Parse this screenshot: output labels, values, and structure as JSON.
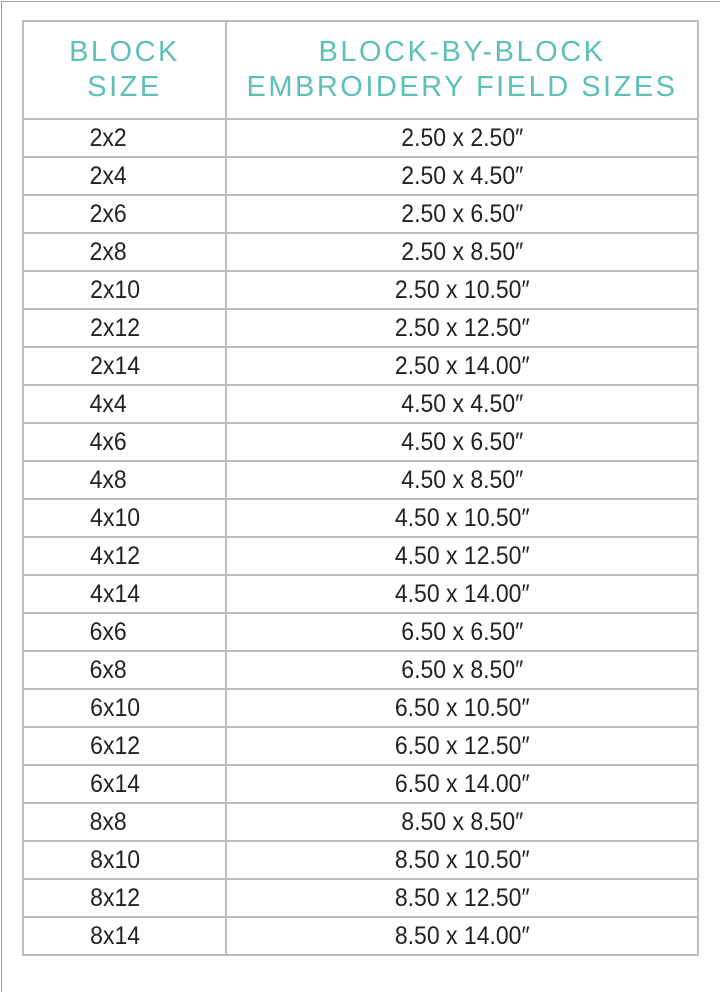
{
  "header": {
    "col1": [
      "BLOCK",
      "SIZE"
    ],
    "col2": [
      "BLOCK-BY-BLOCK",
      "EMBROIDERY FIELD SIZES"
    ]
  },
  "accent_color": "#5cc0b6",
  "rows": [
    {
      "block": "2x2",
      "field": "2.50 x 2.50″"
    },
    {
      "block": "2x4",
      "field": "2.50 x 4.50″"
    },
    {
      "block": "2x6",
      "field": "2.50 x 6.50″"
    },
    {
      "block": "2x8",
      "field": "2.50 x 8.50″"
    },
    {
      "block": "2x10",
      "field": "2.50 x 10.50″"
    },
    {
      "block": "2x12",
      "field": "2.50 x 12.50″"
    },
    {
      "block": "2x14",
      "field": "2.50 x 14.00″"
    },
    {
      "block": "4x4",
      "field": "4.50 x 4.50″"
    },
    {
      "block": "4x6",
      "field": "4.50 x 6.50″"
    },
    {
      "block": "4x8",
      "field": "4.50 x 8.50″"
    },
    {
      "block": "4x10",
      "field": "4.50 x 10.50″"
    },
    {
      "block": "4x12",
      "field": "4.50 x 12.50″"
    },
    {
      "block": "4x14",
      "field": "4.50 x 14.00″"
    },
    {
      "block": "6x6",
      "field": "6.50 x 6.50″"
    },
    {
      "block": "6x8",
      "field": "6.50 x 8.50″"
    },
    {
      "block": "6x10",
      "field": "6.50 x 10.50″"
    },
    {
      "block": "6x12",
      "field": "6.50 x 12.50″"
    },
    {
      "block": "6x14",
      "field": "6.50 x 14.00″"
    },
    {
      "block": "8x8",
      "field": "8.50 x 8.50″"
    },
    {
      "block": "8x10",
      "field": "8.50 x 10.50″"
    },
    {
      "block": "8x12",
      "field": "8.50 x 12.50″"
    },
    {
      "block": "8x14",
      "field": "8.50 x 14.00″"
    }
  ]
}
